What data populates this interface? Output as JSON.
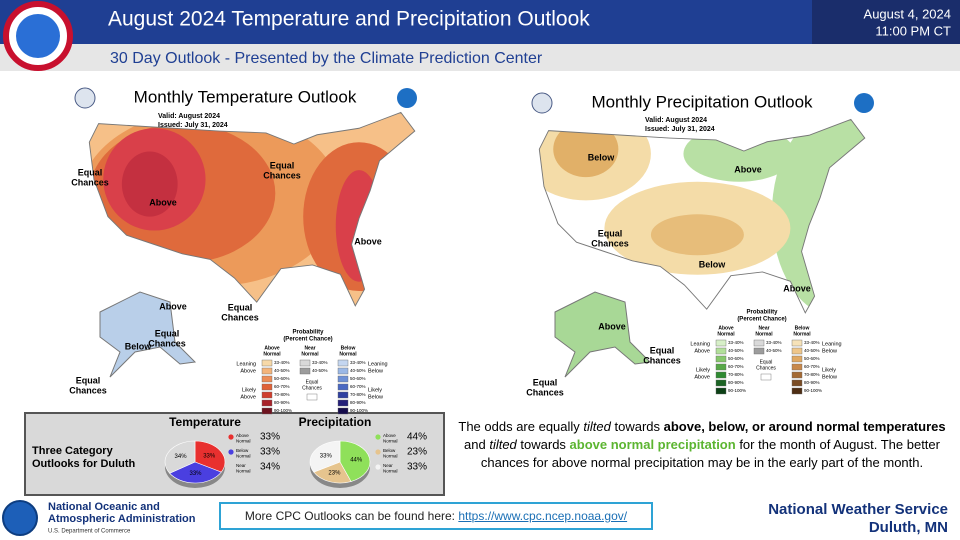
{
  "header": {
    "title": "August 2024 Temperature and Precipitation Outlook",
    "subtitle": "30 Day Outlook - Presented by the Climate Prediction Center",
    "date": "August 4, 2024",
    "time": "11:00 PM CT"
  },
  "maps": [
    {
      "title": "Monthly Temperature Outlook",
      "valid": "Valid:  August 2024",
      "issued": "Issued:  July 31, 2024",
      "regions": [
        [
          "Equal",
          "Chances"
        ],
        [
          "Above"
        ],
        [
          "Equal",
          "Chances"
        ],
        [
          "Above"
        ],
        [
          "Above"
        ],
        [
          "Equal",
          "Chances"
        ],
        [
          "Equal",
          "Chances"
        ],
        [
          "Below"
        ],
        [
          "Equal",
          "Chances"
        ]
      ],
      "legend": {
        "title": [
          "Probability",
          "(Percent Chance)"
        ],
        "columns": [
          [
            "Above",
            "Normal"
          ],
          [
            "Near",
            "Normal"
          ],
          [
            "Below",
            "Normal"
          ]
        ],
        "above": [
          "33-40%",
          "40-50%",
          "50-60%",
          "60-70%",
          "70-80%",
          "80-90%",
          "90-100%"
        ],
        "near": [
          "33-40%",
          "40-50%"
        ],
        "below": [
          "33-40%",
          "40-50%",
          "50-60%",
          "60-70%",
          "70-80%",
          "80-90%",
          "90-100%"
        ],
        "equal": [
          "Equal",
          "Chances"
        ],
        "left": [
          [
            "Leaning",
            "Above"
          ],
          [
            "Likely",
            "Above"
          ]
        ],
        "right": [
          [
            "Leaning",
            "Below"
          ],
          [
            "Likely",
            "Below"
          ]
        ]
      }
    },
    {
      "title": "Monthly Precipitation Outlook",
      "valid": "Valid:  August 2024",
      "issued": "Issued:  July 31, 2024",
      "regions": [
        [
          "Below"
        ],
        [
          "Above"
        ],
        [
          "Equal",
          "Chances"
        ],
        [
          "Below"
        ],
        [
          "Above"
        ],
        [
          "Above"
        ],
        [
          "Equal",
          "Chances"
        ],
        [
          "Equal",
          "Chances"
        ]
      ],
      "legend": {
        "title": [
          "Probability",
          "(Percent Chance)"
        ],
        "columns": [
          [
            "Above",
            "Normal"
          ],
          [
            "Near",
            "Normal"
          ],
          [
            "Below",
            "Normal"
          ]
        ],
        "above": [
          "33-40%",
          "40-50%",
          "50-60%",
          "60-70%",
          "70-80%",
          "80-90%",
          "90-100%"
        ],
        "near": [
          "33-40%",
          "40-50%"
        ],
        "below": [
          "33-40%",
          "40-50%",
          "50-60%",
          "60-70%",
          "70-80%",
          "80-90%",
          "90-100%"
        ],
        "equal": [
          "Equal",
          "Chances"
        ],
        "left": [
          [
            "Leaning",
            "Above"
          ],
          [
            "Likely",
            "Above"
          ]
        ],
        "right": [
          [
            "Leaning",
            "Below"
          ],
          [
            "Likely",
            "Below"
          ]
        ]
      }
    }
  ],
  "duluth": {
    "label": [
      "Three Category",
      "Outlooks for Duluth"
    ],
    "charts": [
      {
        "type": "pie",
        "title": "Temperature",
        "categories": [
          [
            "Above",
            "Normal"
          ],
          [
            "Below",
            "Normal"
          ],
          [
            "Near",
            "Normal"
          ]
        ],
        "values": [
          33,
          33,
          34
        ],
        "value_labels": [
          "33%",
          "33%",
          "34%"
        ],
        "colors": [
          "#e8302f",
          "#4a3fe0",
          "#d9d9d9"
        ]
      },
      {
        "type": "pie",
        "title": "Precipitation",
        "categories": [
          [
            "Above",
            "Normal"
          ],
          [
            "Below",
            "Normal"
          ],
          [
            "Near",
            "Normal"
          ]
        ],
        "values": [
          44,
          23,
          33
        ],
        "value_labels": [
          "44%",
          "23%",
          "33%"
        ],
        "colors": [
          "#8fe05a",
          "#e6c48e",
          "#f4f4f4"
        ]
      }
    ]
  },
  "summary": [
    "The odds are equally ",
    "tilted",
    " towards ",
    "above, below, or around normal temperatures",
    " and ",
    "tilted",
    " towards ",
    "above normal precipitation",
    " for the month of August. The better chances for above normal precipitation may be in the early part of the month."
  ],
  "footer": {
    "noaa": [
      "National Oceanic and",
      "Atmospheric Administration"
    ],
    "commerce": "U.S. Department of Commerce",
    "link_text": "More CPC Outlooks can be found here: ",
    "link": "https://www.cpc.ncep.noaa.gov/",
    "office": [
      "National Weather Service",
      "Duluth, MN"
    ]
  }
}
